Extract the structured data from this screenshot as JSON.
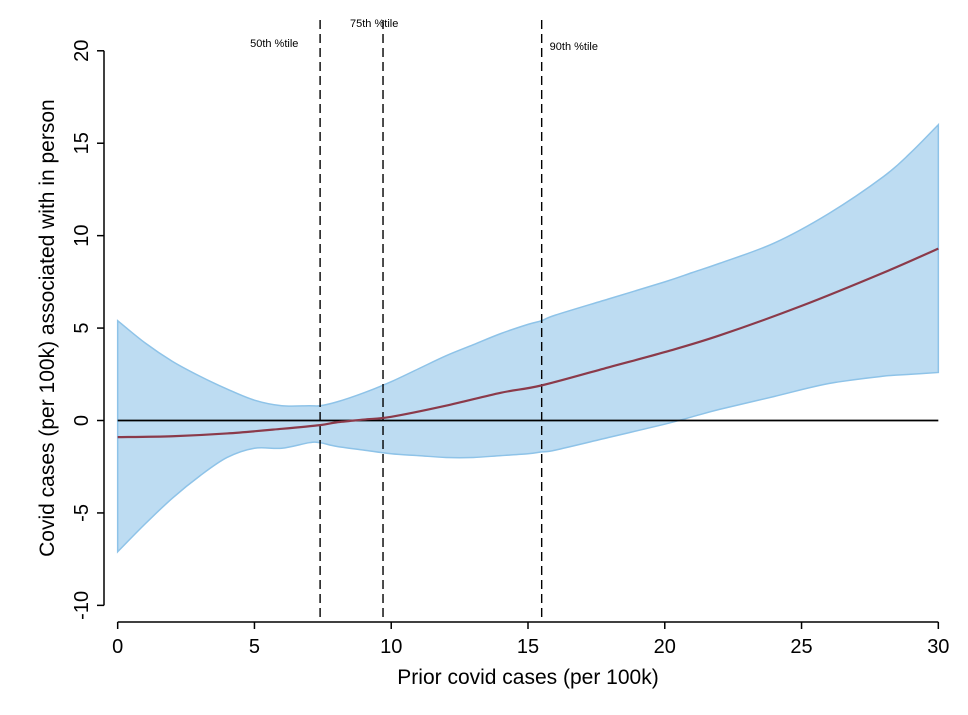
{
  "chart_data": {
    "type": "line",
    "xlabel": "Prior covid cases (per 100k)",
    "ylabel": "Covid cases (per 100k) associated with in person",
    "xlim": [
      -0.5,
      30.5
    ],
    "ylim": [
      -10.9,
      20.8
    ],
    "x_ticks": [
      0,
      5,
      10,
      15,
      20,
      25,
      30
    ],
    "y_ticks": [
      -10,
      -5,
      0,
      5,
      10,
      15,
      20
    ],
    "x_tick_labels": [
      "0",
      "5",
      "10",
      "15",
      "20",
      "25",
      "30"
    ],
    "y_tick_labels": [
      "-10",
      "-5",
      "0",
      "5",
      "10",
      "15",
      "20"
    ],
    "grid": false,
    "legend": "none",
    "colors": {
      "estimate_line": "#8b3a4a",
      "ci_fill": "#bddcf2",
      "ci_edge": "#8ec3e8",
      "reference": "#000000"
    },
    "series": [
      {
        "kind": "line",
        "x": [
          0,
          2,
          4,
          6,
          7.4,
          8,
          9,
          10,
          12,
          14,
          15.5,
          18,
          20,
          22,
          25,
          28,
          30
        ],
        "values": [
          -0.9,
          -0.85,
          -0.7,
          -0.45,
          -0.25,
          -0.1,
          0.05,
          0.2,
          0.8,
          1.5,
          1.9,
          2.9,
          3.7,
          4.6,
          6.2,
          8.0,
          9.3
        ]
      }
    ],
    "confidence_band": {
      "x": [
        0,
        1,
        2,
        3,
        4,
        5,
        6,
        7,
        7.4,
        8,
        9,
        10,
        11,
        12,
        13,
        14,
        15,
        15.5,
        16,
        18,
        20,
        21,
        22,
        24,
        26,
        28,
        29,
        30
      ],
      "upper": [
        5.4,
        4.2,
        3.2,
        2.4,
        1.7,
        1.1,
        0.8,
        0.8,
        0.8,
        1.0,
        1.5,
        2.1,
        2.8,
        3.5,
        4.1,
        4.7,
        5.2,
        5.4,
        5.7,
        6.6,
        7.5,
        8.0,
        8.5,
        9.6,
        11.2,
        13.2,
        14.5,
        16.0
      ],
      "lower": [
        -7.1,
        -5.6,
        -4.2,
        -3.0,
        -2.0,
        -1.5,
        -1.5,
        -1.2,
        -1.2,
        -1.4,
        -1.6,
        -1.8,
        -1.9,
        -2.0,
        -2.0,
        -1.9,
        -1.8,
        -1.7,
        -1.6,
        -0.9,
        -0.2,
        0.2,
        0.6,
        1.3,
        2.0,
        2.4,
        2.5,
        2.6
      ]
    },
    "reference_line": {
      "y": 0
    },
    "percentile_lines": [
      {
        "label": "50th %tile",
        "x": 7.4
      },
      {
        "label": "75th %tile",
        "x": 9.7
      },
      {
        "label": "90th %tile",
        "x": 15.5
      }
    ]
  }
}
